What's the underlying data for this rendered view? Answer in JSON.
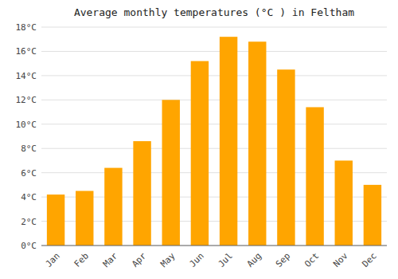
{
  "chart_data": {
    "type": "bar",
    "title": "Average monthly temperatures (°C ) in Feltham",
    "categories": [
      "Jan",
      "Feb",
      "Mar",
      "Apr",
      "May",
      "Jun",
      "Jul",
      "Aug",
      "Sep",
      "Oct",
      "Nov",
      "Dec"
    ],
    "values": [
      4.2,
      4.5,
      6.4,
      8.6,
      12.0,
      15.2,
      17.2,
      16.8,
      14.5,
      11.4,
      7.0,
      5.0
    ],
    "color": "#FFA500",
    "ylim": [
      0,
      18
    ],
    "yticks": [
      {
        "value": 0,
        "label": "0°C"
      },
      {
        "value": 2,
        "label": "2°C"
      },
      {
        "value": 4,
        "label": "4°C"
      },
      {
        "value": 6,
        "label": "6°C"
      },
      {
        "value": 8,
        "label": "8°C"
      },
      {
        "value": 10,
        "label": "10°C"
      },
      {
        "value": 12,
        "label": "12°C"
      },
      {
        "value": 14,
        "label": "14°C"
      },
      {
        "value": 16,
        "label": "16°C"
      },
      {
        "value": 18,
        "label": "18°C"
      }
    ],
    "grid": true
  }
}
